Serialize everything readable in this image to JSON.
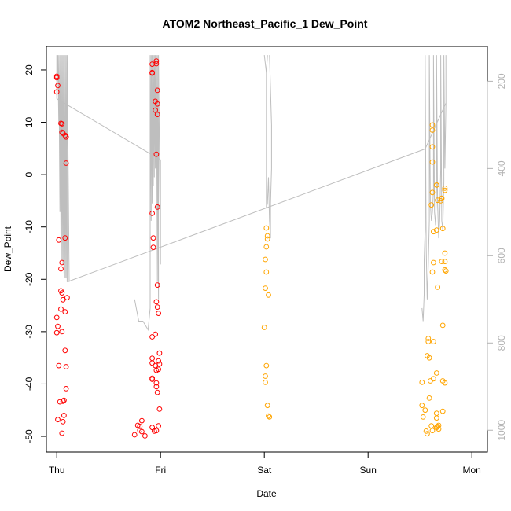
{
  "chart_data": {
    "type": "scatter",
    "title": "ATOM2 Northeast_Pacific_1 Dew_Point",
    "xlabel": "Date",
    "ylabel": "Dew_Point",
    "x_ticks": [
      "Thu",
      "Fri",
      "Sat",
      "Sun",
      "Mon"
    ],
    "xlim": [
      -0.1,
      4.15
    ],
    "ylim": [
      -53,
      24.5
    ],
    "y_ticks": [
      20,
      10,
      0,
      -10,
      -20,
      -30,
      -40,
      -50
    ],
    "y2_ticks": [
      200,
      400,
      600,
      800,
      1000
    ],
    "y2lim": [
      120,
      1050
    ],
    "y2_reversed": true,
    "grid": false,
    "colors": {
      "red": "#ff0000",
      "orange": "#ffa500",
      "pressure": "#bebebe",
      "axis": "#000000",
      "axis_right": "#b3b3b3"
    },
    "series": [
      {
        "color": "red",
        "points": [
          [
            0.0,
            18.8
          ],
          [
            0.0,
            18.5
          ],
          [
            0.01,
            17.0
          ],
          [
            0.0,
            15.8
          ],
          [
            0.02,
            -12.5
          ],
          [
            0.0,
            -27.3
          ],
          [
            0.01,
            -29.0
          ],
          [
            0.0,
            -30.2
          ],
          [
            0.02,
            -36.5
          ],
          [
            0.01,
            -46.8
          ],
          [
            0.03,
            -43.4
          ],
          [
            0.04,
            9.8
          ],
          [
            0.05,
            9.7
          ],
          [
            0.05,
            8.1
          ],
          [
            0.06,
            7.9
          ],
          [
            0.04,
            -18.0
          ],
          [
            0.05,
            -16.8
          ],
          [
            0.04,
            -22.2
          ],
          [
            0.05,
            -22.6
          ],
          [
            0.06,
            -23.9
          ],
          [
            0.04,
            -25.7
          ],
          [
            0.05,
            -30.0
          ],
          [
            0.06,
            -43.3
          ],
          [
            0.07,
            -46.0
          ],
          [
            0.06,
            -47.2
          ],
          [
            0.05,
            -49.4
          ],
          [
            0.08,
            7.5
          ],
          [
            0.09,
            7.2
          ],
          [
            0.09,
            2.2
          ],
          [
            0.08,
            -12.1
          ],
          [
            0.1,
            -23.5
          ],
          [
            0.08,
            -26.2
          ],
          [
            0.08,
            -33.6
          ],
          [
            0.09,
            -36.7
          ],
          [
            0.09,
            -40.9
          ],
          [
            0.07,
            -43.1
          ],
          [
            0.75,
            -49.7
          ],
          [
            0.78,
            -47.9
          ],
          [
            0.8,
            -48.1
          ],
          [
            0.8,
            -48.8
          ],
          [
            0.82,
            -49.1
          ],
          [
            0.85,
            -49.9
          ],
          [
            0.82,
            -47.0
          ],
          [
            0.92,
            21.1
          ],
          [
            0.92,
            19.5
          ],
          [
            0.92,
            19.4
          ],
          [
            0.93,
            -13.9
          ],
          [
            0.92,
            -7.4
          ],
          [
            0.93,
            -12.1
          ],
          [
            0.92,
            -31.0
          ],
          [
            0.92,
            -35.1
          ],
          [
            0.92,
            -36.0
          ],
          [
            0.92,
            -38.9
          ],
          [
            0.92,
            -39.1
          ],
          [
            0.92,
            -48.3
          ],
          [
            0.94,
            -49.0
          ],
          [
            0.96,
            21.7
          ],
          [
            0.96,
            21.2
          ],
          [
            0.97,
            16.1
          ],
          [
            0.95,
            14.0
          ],
          [
            0.97,
            13.5
          ],
          [
            0.95,
            12.3
          ],
          [
            0.97,
            11.5
          ],
          [
            0.96,
            3.9
          ],
          [
            0.97,
            -6.2
          ],
          [
            0.96,
            -24.3
          ],
          [
            0.97,
            -25.3
          ],
          [
            0.97,
            -21.1
          ],
          [
            0.95,
            -30.5
          ],
          [
            0.95,
            -36.5
          ],
          [
            0.96,
            -37.4
          ],
          [
            0.96,
            -39.8
          ],
          [
            0.96,
            -40.5
          ],
          [
            0.97,
            -41.6
          ],
          [
            0.96,
            -48.9
          ],
          [
            0.98,
            -26.5
          ],
          [
            0.99,
            -34.1
          ],
          [
            0.98,
            -35.6
          ],
          [
            0.99,
            -36.2
          ],
          [
            0.98,
            -37.2
          ],
          [
            0.99,
            -44.8
          ],
          [
            0.98,
            -48.0
          ]
        ]
      },
      {
        "color": "orange",
        "points": [
          [
            2.0,
            -29.2
          ],
          [
            2.01,
            -21.7
          ],
          [
            2.02,
            -18.6
          ],
          [
            2.01,
            -16.2
          ],
          [
            2.02,
            -13.8
          ],
          [
            2.03,
            -12.3
          ],
          [
            2.03,
            -11.7
          ],
          [
            2.02,
            -10.2
          ],
          [
            2.04,
            -23.0
          ],
          [
            2.02,
            -36.5
          ],
          [
            2.01,
            -38.5
          ],
          [
            2.01,
            -39.7
          ],
          [
            2.03,
            -44.1
          ],
          [
            2.04,
            -46.1
          ],
          [
            2.05,
            -46.3
          ],
          [
            3.52,
            -39.7
          ],
          [
            3.52,
            -44.1
          ],
          [
            3.53,
            -46.3
          ],
          [
            3.55,
            -45.0
          ],
          [
            3.56,
            -49.0
          ],
          [
            3.57,
            -49.5
          ],
          [
            3.58,
            -31.3
          ],
          [
            3.58,
            -31.9
          ],
          [
            3.57,
            -34.6
          ],
          [
            3.59,
            -35.0
          ],
          [
            3.6,
            -39.4
          ],
          [
            3.59,
            -42.7
          ],
          [
            3.61,
            -48.0
          ],
          [
            3.62,
            -48.9
          ],
          [
            3.62,
            9.5
          ],
          [
            3.62,
            8.5
          ],
          [
            3.62,
            5.3
          ],
          [
            3.62,
            2.4
          ],
          [
            3.62,
            -3.4
          ],
          [
            3.61,
            -5.8
          ],
          [
            3.63,
            -10.9
          ],
          [
            3.63,
            -16.8
          ],
          [
            3.62,
            -18.6
          ],
          [
            3.63,
            -31.9
          ],
          [
            3.63,
            -39.0
          ],
          [
            3.66,
            -10.6
          ],
          [
            3.66,
            -2.0
          ],
          [
            3.66,
            -2.0
          ],
          [
            3.67,
            -4.9
          ],
          [
            3.67,
            -21.5
          ],
          [
            3.66,
            -37.9
          ],
          [
            3.66,
            -45.6
          ],
          [
            3.66,
            -46.5
          ],
          [
            3.67,
            -48.1
          ],
          [
            3.66,
            -48.3
          ],
          [
            3.68,
            -48.6
          ],
          [
            3.68,
            -47.9
          ],
          [
            3.7,
            -5.0
          ],
          [
            3.71,
            -4.6
          ],
          [
            3.71,
            -4.5
          ],
          [
            3.72,
            -10.3
          ],
          [
            3.71,
            -16.6
          ],
          [
            3.72,
            -28.8
          ],
          [
            3.72,
            -39.4
          ],
          [
            3.72,
            -45.2
          ],
          [
            3.74,
            -2.6
          ],
          [
            3.74,
            -3.0
          ],
          [
            3.74,
            -15.0
          ],
          [
            3.74,
            -16.6
          ],
          [
            3.74,
            -18.2
          ],
          [
            3.75,
            -18.4
          ],
          [
            3.74,
            -39.8
          ]
        ]
      }
    ],
    "pressure_segments": [
      [
        [
          0.0,
          140
        ],
        [
          0.0,
          240
        ],
        [
          0.01,
          140
        ],
        [
          0.02,
          300
        ],
        [
          0.02,
          140
        ],
        [
          0.03,
          500
        ],
        [
          0.03,
          140
        ],
        [
          0.04,
          560
        ],
        [
          0.04,
          140
        ],
        [
          0.05,
          610
        ],
        [
          0.05,
          140
        ],
        [
          0.06,
          620
        ],
        [
          0.06,
          140
        ],
        [
          0.07,
          640
        ],
        [
          0.07,
          140
        ],
        [
          0.08,
          650
        ],
        [
          0.08,
          140
        ],
        [
          0.09,
          650
        ],
        [
          0.09,
          140
        ],
        [
          0.1,
          660
        ],
        [
          0.1,
          140
        ],
        [
          0.12,
          660
        ]
      ],
      [
        [
          0.0,
          240
        ],
        [
          1.0,
          380
        ]
      ],
      [
        [
          0.75,
          700
        ],
        [
          0.79,
          750
        ],
        [
          0.83,
          750
        ],
        [
          0.88,
          770
        ],
        [
          0.9,
          720
        ],
        [
          0.9,
          140
        ],
        [
          0.91,
          520
        ],
        [
          0.91,
          140
        ],
        [
          0.92,
          480
        ],
        [
          0.92,
          140
        ],
        [
          0.93,
          440
        ],
        [
          0.93,
          140
        ],
        [
          0.94,
          420
        ],
        [
          0.94,
          140
        ],
        [
          0.95,
          400
        ],
        [
          0.95,
          140
        ],
        [
          0.96,
          400
        ],
        [
          0.96,
          140
        ],
        [
          0.97,
          660
        ],
        [
          0.97,
          140
        ],
        [
          0.98,
          700
        ],
        [
          0.98,
          140
        ],
        [
          1.0,
          620
        ],
        [
          1.0,
          380
        ]
      ],
      [
        [
          0.1,
          660
        ],
        [
          3.55,
          355
        ]
      ],
      [
        [
          2.0,
          140
        ],
        [
          2.02,
          180
        ],
        [
          2.02,
          490
        ],
        [
          2.03,
          480
        ],
        [
          2.04,
          420
        ],
        [
          2.05,
          520
        ],
        [
          2.06,
          560
        ],
        [
          2.06,
          480
        ],
        [
          2.07,
          400
        ],
        [
          2.07,
          300
        ],
        [
          2.05,
          140
        ]
      ],
      [
        [
          2.02,
          180
        ],
        [
          2.03,
          140
        ]
      ],
      [
        [
          3.52,
          720
        ],
        [
          3.53,
          750
        ],
        [
          3.54,
          690
        ],
        [
          3.54,
          610
        ],
        [
          3.55,
          540
        ],
        [
          3.55,
          355
        ],
        [
          3.55,
          140
        ],
        [
          3.56,
          580
        ],
        [
          3.57,
          700
        ],
        [
          3.58,
          620
        ],
        [
          3.59,
          520
        ],
        [
          3.59,
          140
        ],
        [
          3.6,
          480
        ],
        [
          3.61,
          520
        ],
        [
          3.62,
          500
        ],
        [
          3.63,
          450
        ],
        [
          3.63,
          140
        ],
        [
          3.64,
          500
        ],
        [
          3.65,
          530
        ],
        [
          3.66,
          450
        ],
        [
          3.66,
          140
        ],
        [
          3.67,
          480
        ],
        [
          3.68,
          560
        ],
        [
          3.69,
          520
        ],
        [
          3.7,
          400
        ],
        [
          3.7,
          140
        ],
        [
          3.71,
          520
        ],
        [
          3.72,
          540
        ],
        [
          3.73,
          430
        ],
        [
          3.73,
          140
        ],
        [
          3.74,
          400
        ],
        [
          3.75,
          250
        ],
        [
          3.75,
          140
        ]
      ],
      [
        [
          3.55,
          355
        ],
        [
          3.75,
          250
        ]
      ]
    ]
  }
}
